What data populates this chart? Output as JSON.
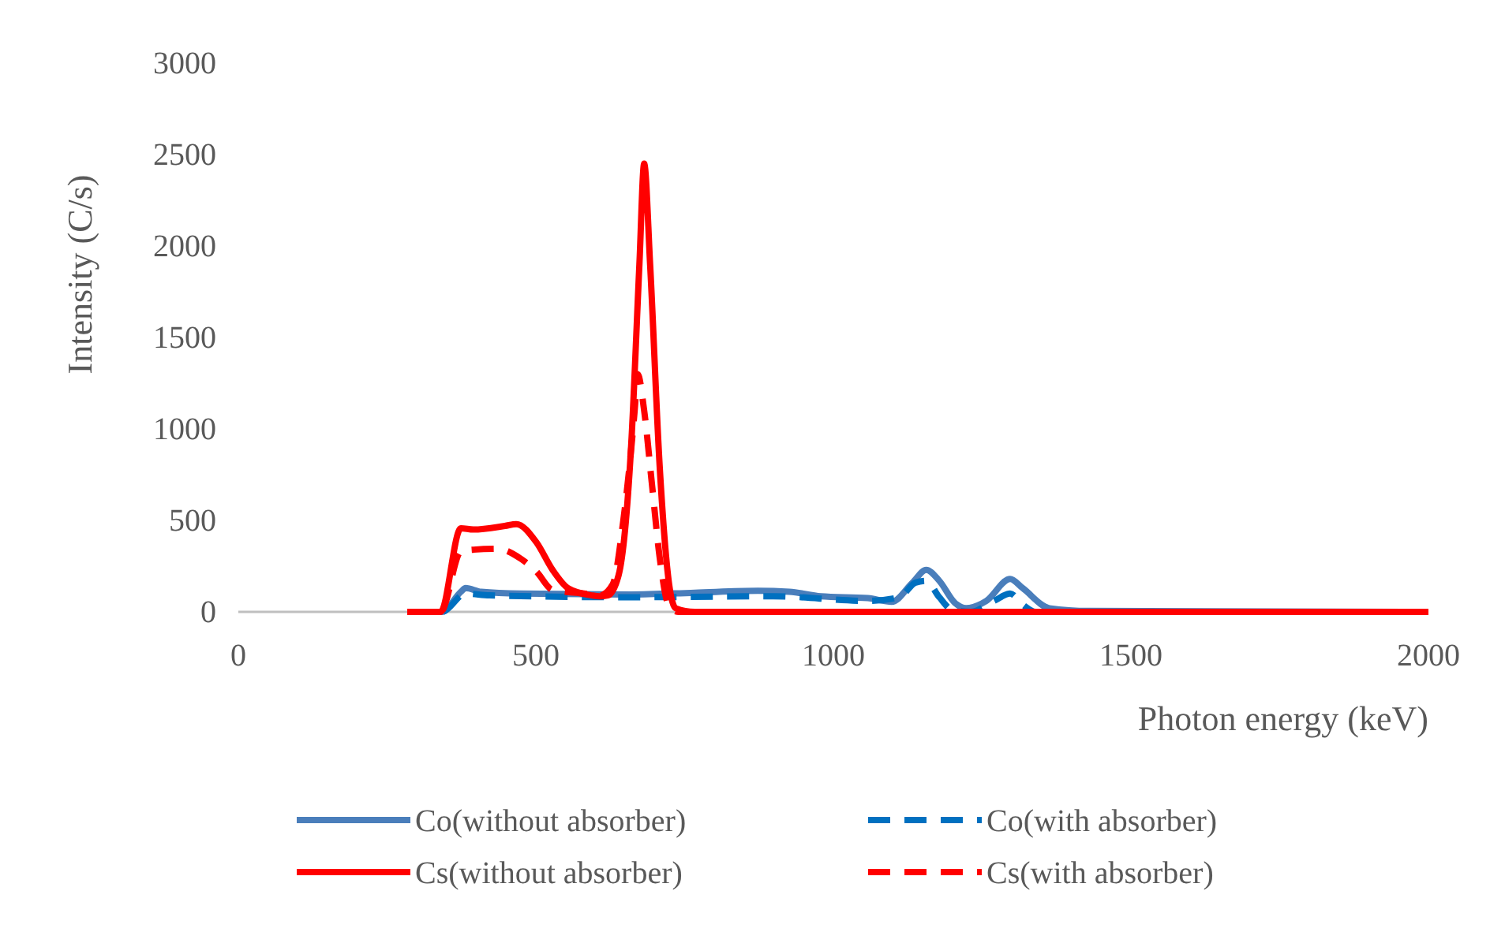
{
  "chart_data": {
    "type": "line",
    "xlabel": "Photon energy (keV)",
    "ylabel": "Intensity (C/s)",
    "xlim": [
      0,
      2000
    ],
    "ylim": [
      0,
      3000
    ],
    "xticks": [
      0,
      500,
      1000,
      1500,
      2000
    ],
    "yticks": [
      0,
      500,
      1000,
      1500,
      2000,
      2500,
      3000
    ],
    "grid": false,
    "legend": "bottom",
    "marker": "none",
    "series": [
      {
        "name": "Co(without absorber)",
        "color": "#4a7ebb",
        "line_style": "solid",
        "x": [
          284,
          342,
          374,
          382,
          408,
          475,
          660,
          767,
          873,
          926,
          979,
          1058,
          1098,
          1133,
          1156,
          1178,
          1204,
          1223,
          1257,
          1297,
          1318,
          1363,
          1430,
          2000
        ],
        "values": [
          0,
          0,
          110,
          130,
          110,
          100,
          95,
          105,
          115,
          110,
          85,
          75,
          55,
          160,
          230,
          170,
          50,
          20,
          60,
          180,
          130,
          20,
          5,
          0
        ]
      },
      {
        "name": "Co(with absorber)",
        "color": "#0070c0",
        "line_style": "dashed",
        "x": [
          284,
          342,
          382,
          422,
          660,
          899,
          1058,
          1111,
          1138,
          1156,
          1178,
          1200,
          1230,
          1270,
          1297,
          1318,
          1340,
          2000
        ],
        "values": [
          0,
          0,
          100,
          90,
          80,
          85,
          60,
          80,
          160,
          170,
          80,
          10,
          0,
          60,
          100,
          40,
          0,
          0
        ]
      },
      {
        "name": "Cs(without absorber)",
        "color": "#ff0000",
        "line_style": "solid",
        "x": [
          284,
          340,
          374,
          395,
          448,
          467,
          501,
          528,
          554,
          594,
          607,
          621,
          639,
          660,
          674,
          682,
          692,
          708,
          724,
          735,
          767,
          2000
        ],
        "values": [
          0,
          0,
          457,
          450,
          470,
          480,
          380,
          230,
          130,
          90,
          85,
          90,
          200,
          900,
          1900,
          2450,
          1900,
          800,
          150,
          20,
          0,
          0
        ]
      },
      {
        "name": "Cs(with absorber)",
        "color": "#ff0000",
        "line_style": "dashed",
        "x": [
          284,
          340,
          374,
          395,
          435,
          475,
          501,
          528,
          581,
          607,
          629,
          647,
          666,
          671,
          682,
          695,
          708,
          724,
          740,
          2000
        ],
        "values": [
          0,
          0,
          330,
          340,
          345,
          290,
          220,
          120,
          100,
          90,
          150,
          500,
          1100,
          1300,
          1100,
          700,
          300,
          30,
          0,
          0
        ]
      }
    ]
  }
}
